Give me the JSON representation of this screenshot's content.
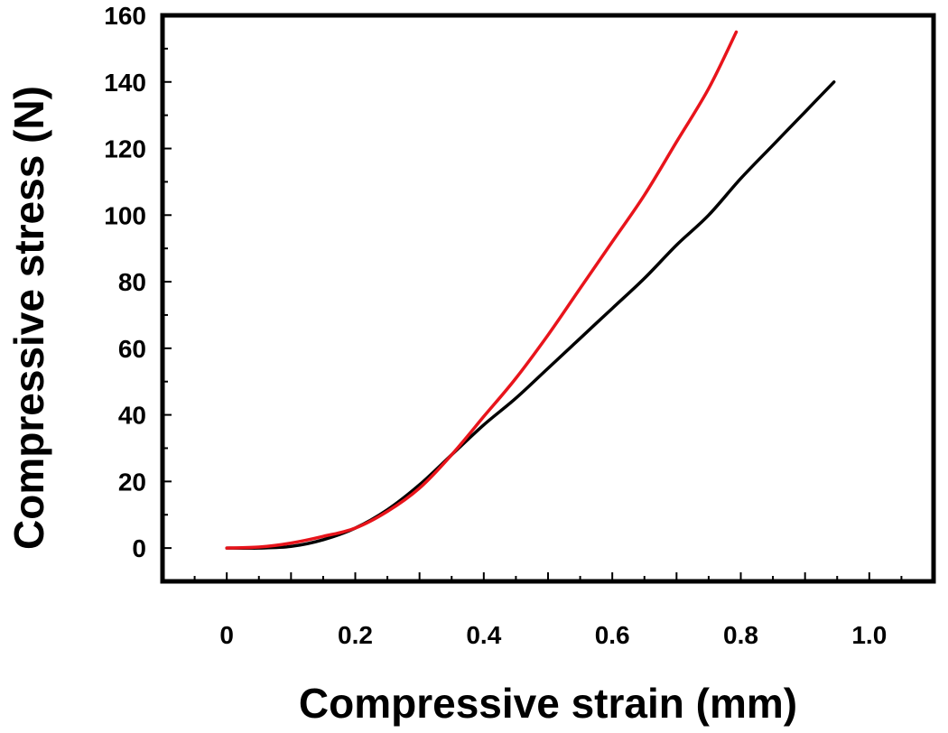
{
  "chart_data": {
    "type": "line",
    "title": "",
    "xlabel": "Compressive strain (mm)",
    "ylabel": "Compressive stress (N)",
    "xlim": [
      -0.1,
      1.1
    ],
    "ylim": [
      -10,
      160
    ],
    "x_ticks": [
      "0",
      "0.2",
      "0.4",
      "0.6",
      "0.8",
      "1.0"
    ],
    "x_tick_values": [
      0,
      0.2,
      0.4,
      0.6,
      0.8,
      1.0
    ],
    "y_ticks": [
      "0",
      "20",
      "40",
      "60",
      "80",
      "100",
      "120",
      "140",
      "160"
    ],
    "y_tick_values": [
      0,
      20,
      40,
      60,
      80,
      100,
      120,
      140,
      160
    ],
    "grid": false,
    "legend": "none",
    "series": [
      {
        "color": "#000000",
        "x": [
          0,
          0.05,
          0.1,
          0.15,
          0.2,
          0.25,
          0.3,
          0.35,
          0.4,
          0.45,
          0.5,
          0.55,
          0.6,
          0.65,
          0.7,
          0.75,
          0.8,
          0.85,
          0.9,
          0.945
        ],
        "y": [
          0,
          0,
          0.5,
          2.5,
          6,
          11.5,
          19,
          28,
          37,
          45,
          54,
          63,
          72,
          81,
          91,
          100,
          111,
          121,
          131,
          140
        ]
      },
      {
        "color": "#e8141b",
        "x": [
          0,
          0.05,
          0.1,
          0.15,
          0.2,
          0.25,
          0.3,
          0.35,
          0.4,
          0.45,
          0.5,
          0.55,
          0.6,
          0.65,
          0.7,
          0.75,
          0.793
        ],
        "y": [
          0,
          0.3,
          1.5,
          3.5,
          6,
          11,
          18,
          28,
          39.5,
          51,
          64,
          78,
          92,
          106,
          122,
          138,
          155
        ]
      }
    ]
  }
}
